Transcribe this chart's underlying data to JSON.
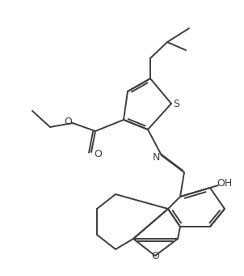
{
  "bg_color": "#ffffff",
  "line_color": "#3d3d3d",
  "line_width": 1.4,
  "figsize": [
    3.02,
    3.41
  ],
  "dpi": 100,
  "xlim": [
    0,
    302
  ],
  "ylim": [
    0,
    341
  ]
}
